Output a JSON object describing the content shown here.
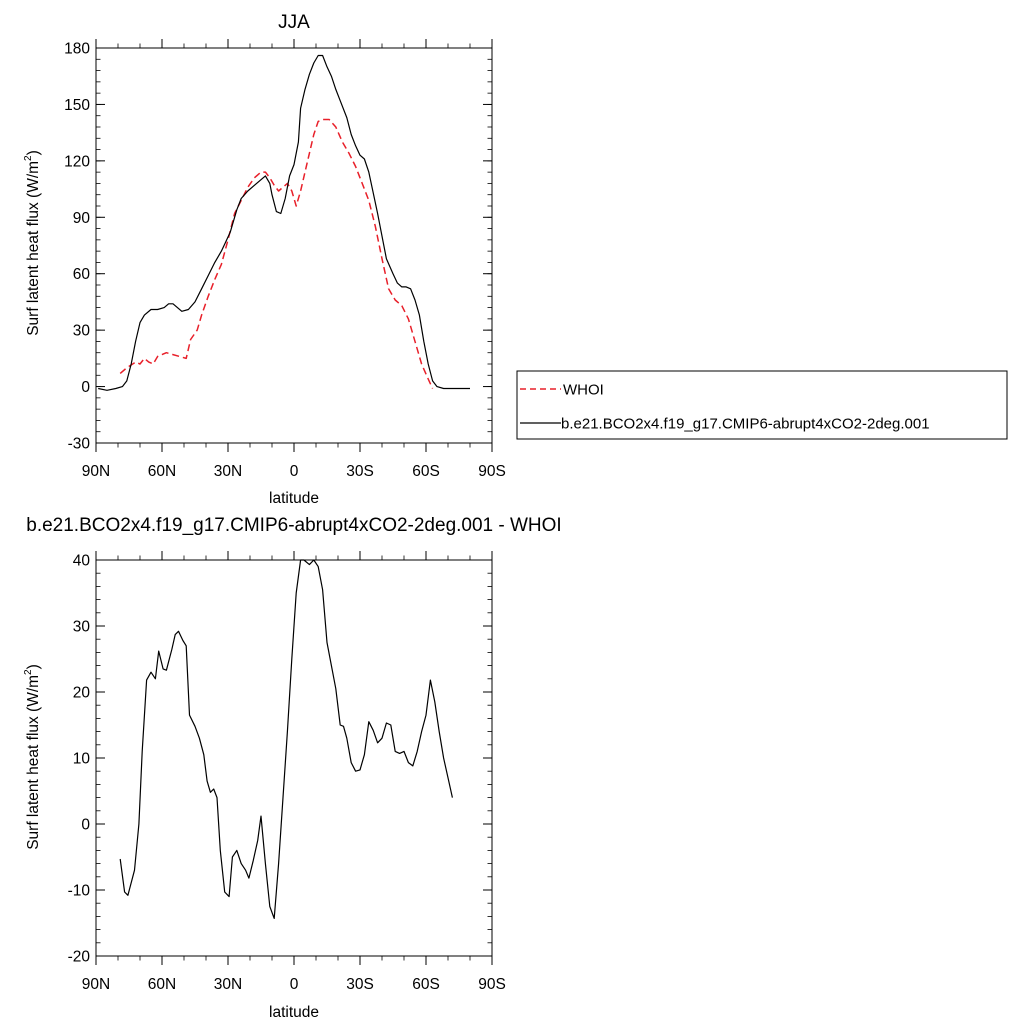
{
  "chart_data": [
    {
      "type": "line",
      "title": "JJA",
      "xlabel": "latitude",
      "ylabel": "Surf latent heat flux (W/m",
      "ylabel_sup": "2",
      "ylabel_close": ")",
      "x_units": "degrees latitude (positive = south)",
      "xlim": [
        -90,
        90
      ],
      "ylim": [
        -30,
        180
      ],
      "x_ticks": [
        -90,
        -60,
        -30,
        0,
        30,
        60,
        90
      ],
      "x_tick_labels": [
        "90N",
        "60N",
        "30N",
        "0",
        "30S",
        "60S",
        "90S"
      ],
      "y_ticks": [
        -30,
        0,
        30,
        60,
        90,
        120,
        150,
        180
      ],
      "y_tick_labels": [
        "-30",
        "0",
        "30",
        "60",
        "90",
        "120",
        "150",
        "180"
      ],
      "legend": {
        "placement": "right-outside"
      },
      "series": [
        {
          "name": "WHOI",
          "color": "#e8202a",
          "dash": "dashed",
          "points": [
            [
              -79,
              7
            ],
            [
              -76,
              10
            ],
            [
              -72,
              13
            ],
            [
              -70,
              12
            ],
            [
              -68,
              15
            ],
            [
              -66,
              13
            ],
            [
              -64,
              12
            ],
            [
              -62,
              16
            ],
            [
              -60,
              17
            ],
            [
              -58,
              18
            ],
            [
              -55,
              17
            ],
            [
              -52,
              16
            ],
            [
              -49,
              15
            ],
            [
              -47,
              25
            ],
            [
              -44,
              30
            ],
            [
              -42,
              38
            ],
            [
              -39,
              48
            ],
            [
              -36,
              57
            ],
            [
              -33,
              65
            ],
            [
              -30,
              78
            ],
            [
              -27,
              92
            ],
            [
              -24,
              99
            ],
            [
              -21,
              106
            ],
            [
              -18,
              111
            ],
            [
              -15,
              114
            ],
            [
              -13,
              114
            ],
            [
              -11,
              111
            ],
            [
              -9,
              107
            ],
            [
              -7,
              104
            ],
            [
              -5,
              106
            ],
            [
              -3,
              108
            ],
            [
              -1,
              104
            ],
            [
              1,
              96
            ],
            [
              3,
              104
            ],
            [
              5,
              114
            ],
            [
              7,
              124
            ],
            [
              9,
              134
            ],
            [
              11,
              141
            ],
            [
              13,
              142
            ],
            [
              16,
              142
            ],
            [
              19,
              138
            ],
            [
              22,
              130
            ],
            [
              25,
              124
            ],
            [
              28,
              117
            ],
            [
              31,
              108
            ],
            [
              34,
              99
            ],
            [
              37,
              85
            ],
            [
              40,
              68
            ],
            [
              43,
              52
            ],
            [
              46,
              46
            ],
            [
              49,
              43
            ],
            [
              52,
              36
            ],
            [
              55,
              24
            ],
            [
              58,
              12
            ],
            [
              61,
              4
            ],
            [
              63,
              -1
            ]
          ]
        },
        {
          "name": "b.e21.BCO2x4.f19_g17.CMIP6-abrupt4xCO2-2deg.001",
          "color": "#000000",
          "dash": "solid",
          "points": [
            [
              -89,
              -1
            ],
            [
              -85,
              -2
            ],
            [
              -81,
              -1
            ],
            [
              -78,
              0
            ],
            [
              -76,
              3
            ],
            [
              -74,
              12
            ],
            [
              -72,
              24
            ],
            [
              -70,
              34
            ],
            [
              -68,
              38
            ],
            [
              -65,
              41
            ],
            [
              -62,
              41
            ],
            [
              -59,
              42
            ],
            [
              -57,
              44
            ],
            [
              -55,
              44
            ],
            [
              -53,
              42
            ],
            [
              -51,
              40
            ],
            [
              -48,
              41
            ],
            [
              -45,
              45
            ],
            [
              -42,
              52
            ],
            [
              -39,
              59
            ],
            [
              -36,
              66
            ],
            [
              -33,
              72
            ],
            [
              -31,
              77
            ],
            [
              -29,
              82
            ],
            [
              -26,
              94
            ],
            [
              -24,
              100
            ],
            [
              -21,
              104
            ],
            [
              -18,
              107
            ],
            [
              -15,
              110
            ],
            [
              -13,
              112
            ],
            [
              -11,
              108
            ],
            [
              -10,
              102
            ],
            [
              -8,
              93
            ],
            [
              -6,
              92
            ],
            [
              -4,
              100
            ],
            [
              -2,
              112
            ],
            [
              0,
              118
            ],
            [
              2,
              130
            ],
            [
              3,
              148
            ],
            [
              5,
              158
            ],
            [
              7,
              166
            ],
            [
              9,
              172
            ],
            [
              11,
              176
            ],
            [
              13,
              176
            ],
            [
              15,
              170
            ],
            [
              17,
              165
            ],
            [
              19,
              158
            ],
            [
              21,
              152
            ],
            [
              24,
              143
            ],
            [
              26,
              134
            ],
            [
              28,
              128
            ],
            [
              30,
              123
            ],
            [
              32,
              121
            ],
            [
              34,
              114
            ],
            [
              36,
              103
            ],
            [
              38,
              92
            ],
            [
              40,
              80
            ],
            [
              42,
              68
            ],
            [
              45,
              60
            ],
            [
              47,
              55
            ],
            [
              49,
              53
            ],
            [
              51,
              53
            ],
            [
              53,
              52
            ],
            [
              55,
              46
            ],
            [
              57,
              38
            ],
            [
              59,
              24
            ],
            [
              61,
              12
            ],
            [
              63,
              3
            ],
            [
              65,
              0
            ],
            [
              68,
              -1
            ],
            [
              72,
              -1
            ],
            [
              76,
              -1
            ],
            [
              80,
              -1
            ]
          ]
        }
      ]
    },
    {
      "type": "line",
      "title": "b.e21.BCO2x4.f19_g17.CMIP6-abrupt4xCO2-2deg.001 - WHOI",
      "xlabel": "latitude",
      "ylabel": "Surf latent heat flux (W/m",
      "ylabel_sup": "2",
      "ylabel_close": ")",
      "x_units": "degrees latitude (positive = south)",
      "xlim": [
        -90,
        90
      ],
      "ylim": [
        -20,
        40
      ],
      "x_ticks": [
        -90,
        -60,
        -30,
        0,
        30,
        60,
        90
      ],
      "x_tick_labels": [
        "90N",
        "60N",
        "30N",
        "0",
        "30S",
        "60S",
        "90S"
      ],
      "y_ticks": [
        -20,
        -10,
        0,
        10,
        20,
        30,
        40
      ],
      "y_tick_labels": [
        "-20",
        "-10",
        "0",
        "10",
        "20",
        "30",
        "40"
      ],
      "series": [
        {
          "color": "#000000",
          "dash": "solid",
          "points": [
            [
              -79,
              -5.3
            ],
            [
              -77,
              -10.3
            ],
            [
              -75.5,
              -10.8
            ],
            [
              -72.5,
              -7
            ],
            [
              -70.5,
              0
            ],
            [
              -69,
              11
            ],
            [
              -67,
              21.8
            ],
            [
              -65,
              23
            ],
            [
              -63,
              22
            ],
            [
              -61.5,
              26.2
            ],
            [
              -59.5,
              23.5
            ],
            [
              -58,
              23.3
            ],
            [
              -55.5,
              26.5
            ],
            [
              -54,
              28.7
            ],
            [
              -52.5,
              29.2
            ],
            [
              -50.5,
              27.8
            ],
            [
              -49,
              27
            ],
            [
              -47.5,
              16.5
            ],
            [
              -45,
              14.8
            ],
            [
              -43,
              13
            ],
            [
              -41,
              10.5
            ],
            [
              -39.5,
              6.5
            ],
            [
              -38,
              4.8
            ],
            [
              -36.5,
              5.3
            ],
            [
              -35,
              4
            ],
            [
              -33.5,
              -4
            ],
            [
              -31.5,
              -10.3
            ],
            [
              -29.5,
              -11
            ],
            [
              -28,
              -5
            ],
            [
              -26,
              -4
            ],
            [
              -24,
              -6
            ],
            [
              -22,
              -7
            ],
            [
              -20.5,
              -8.2
            ],
            [
              -18.5,
              -5.5
            ],
            [
              -16.5,
              -2.5
            ],
            [
              -15,
              1.2
            ],
            [
              -13,
              -6
            ],
            [
              -11,
              -12.5
            ],
            [
              -9,
              -14.3
            ],
            [
              -7,
              -6
            ],
            [
              -5,
              4
            ],
            [
              -3,
              14
            ],
            [
              -1,
              25
            ],
            [
              1,
              35
            ],
            [
              3,
              40
            ],
            [
              4.5,
              40
            ],
            [
              7,
              39.3
            ],
            [
              9,
              40
            ],
            [
              11,
              39
            ],
            [
              13,
              35.5
            ],
            [
              15,
              27.5
            ],
            [
              17,
              24
            ],
            [
              19,
              20.5
            ],
            [
              21,
              15
            ],
            [
              22.5,
              14.8
            ],
            [
              24,
              13
            ],
            [
              26,
              9.3
            ],
            [
              28,
              8
            ],
            [
              30,
              8.2
            ],
            [
              32,
              10.5
            ],
            [
              34,
              15.5
            ],
            [
              36,
              14.2
            ],
            [
              38,
              12.3
            ],
            [
              40,
              13
            ],
            [
              42,
              15.3
            ],
            [
              44,
              15
            ],
            [
              46,
              11
            ],
            [
              48,
              10.7
            ],
            [
              50,
              11
            ],
            [
              52,
              9.3
            ],
            [
              54,
              8.8
            ],
            [
              56,
              11
            ],
            [
              58,
              14
            ],
            [
              60,
              16.5
            ],
            [
              62,
              21.8
            ],
            [
              64,
              18.5
            ],
            [
              66,
              14
            ],
            [
              68,
              10
            ],
            [
              70,
              7
            ],
            [
              72,
              4
            ]
          ]
        }
      ]
    }
  ]
}
